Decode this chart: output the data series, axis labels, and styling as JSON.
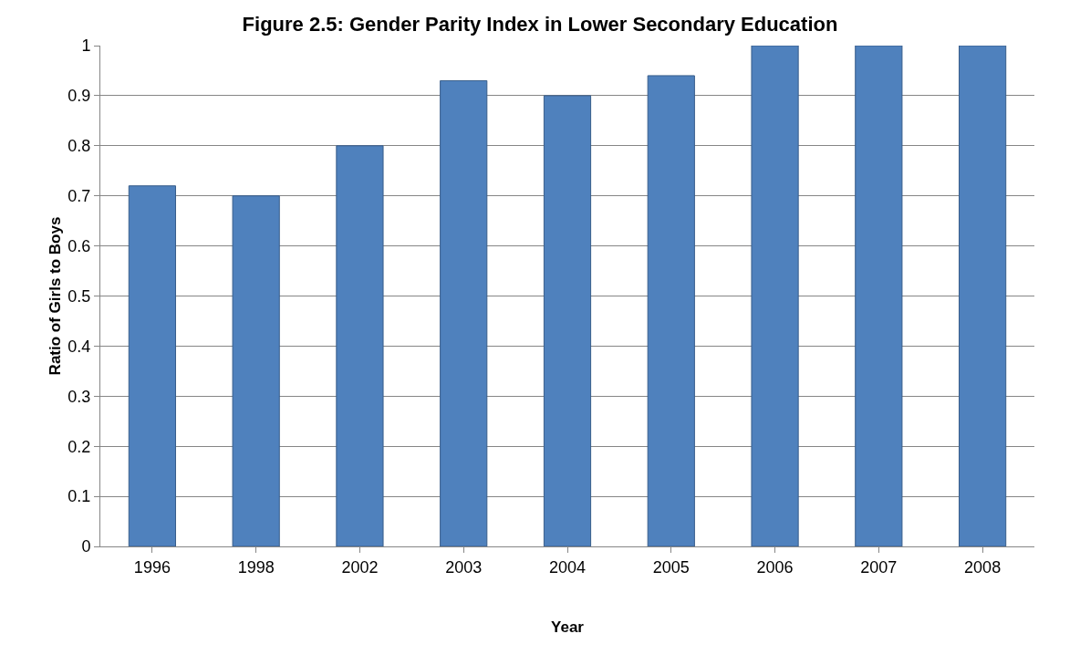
{
  "chart_data": {
    "type": "bar",
    "title": "Figure 2.5: Gender Parity Index in Lower Secondary Education",
    "xlabel": "Year",
    "ylabel": "Ratio of Girls to Boys",
    "categories": [
      "1996",
      "1998",
      "2002",
      "2003",
      "2004",
      "2005",
      "2006",
      "2007",
      "2008"
    ],
    "values": [
      0.72,
      0.7,
      0.8,
      0.93,
      0.9,
      0.94,
      1,
      1,
      1
    ],
    "color": "#4f81bd",
    "ylim": [
      0,
      1
    ],
    "yticks": [
      0,
      0.1,
      0.2,
      0.3,
      0.4,
      0.5,
      0.6,
      0.7,
      0.8,
      0.9,
      1
    ],
    "grid": "y",
    "legend": false
  }
}
